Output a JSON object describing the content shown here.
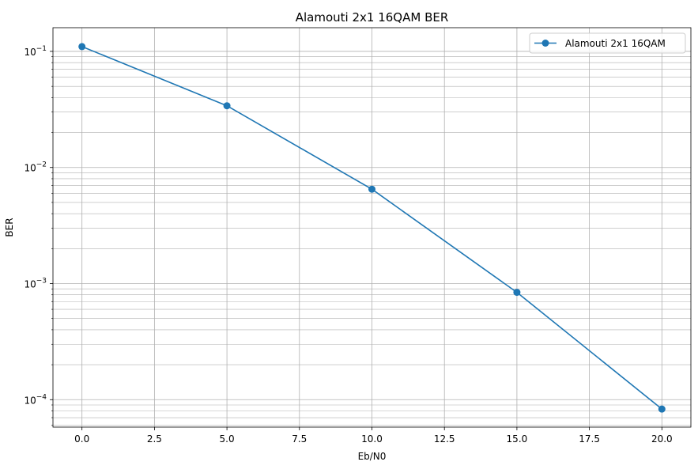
{
  "chart_data": {
    "type": "line",
    "title": "Alamouti 2x1 16QAM BER",
    "xlabel": "Eb/N0",
    "ylabel": "BER",
    "xscale": "linear",
    "yscale": "log",
    "xlim": [
      -1.0,
      21.0
    ],
    "ylim": [
      5.8e-05,
      0.16
    ],
    "x_ticks": [
      0.0,
      2.5,
      5.0,
      7.5,
      10.0,
      12.5,
      15.0,
      17.5,
      20.0
    ],
    "x_tick_labels": [
      "0.0",
      "2.5",
      "5.0",
      "7.5",
      "10.0",
      "12.5",
      "15.0",
      "17.5",
      "20.0"
    ],
    "y_ticks": [
      {
        "value": 0.1,
        "base": "10",
        "exp": "−1"
      },
      {
        "value": 0.01,
        "base": "10",
        "exp": "−2"
      },
      {
        "value": 0.001,
        "base": "10",
        "exp": "−3"
      },
      {
        "value": 0.0001,
        "base": "10",
        "exp": "−4"
      }
    ],
    "grid": "major and minor",
    "legend_position": "top-right",
    "series": [
      {
        "name": "Alamouti 2x1 16QAM",
        "color": "#1f77b4",
        "marker": "circle",
        "x": [
          0,
          5,
          10,
          15,
          20
        ],
        "y": [
          0.11,
          0.034,
          0.0065,
          0.00084,
          8.3e-05
        ]
      }
    ]
  }
}
